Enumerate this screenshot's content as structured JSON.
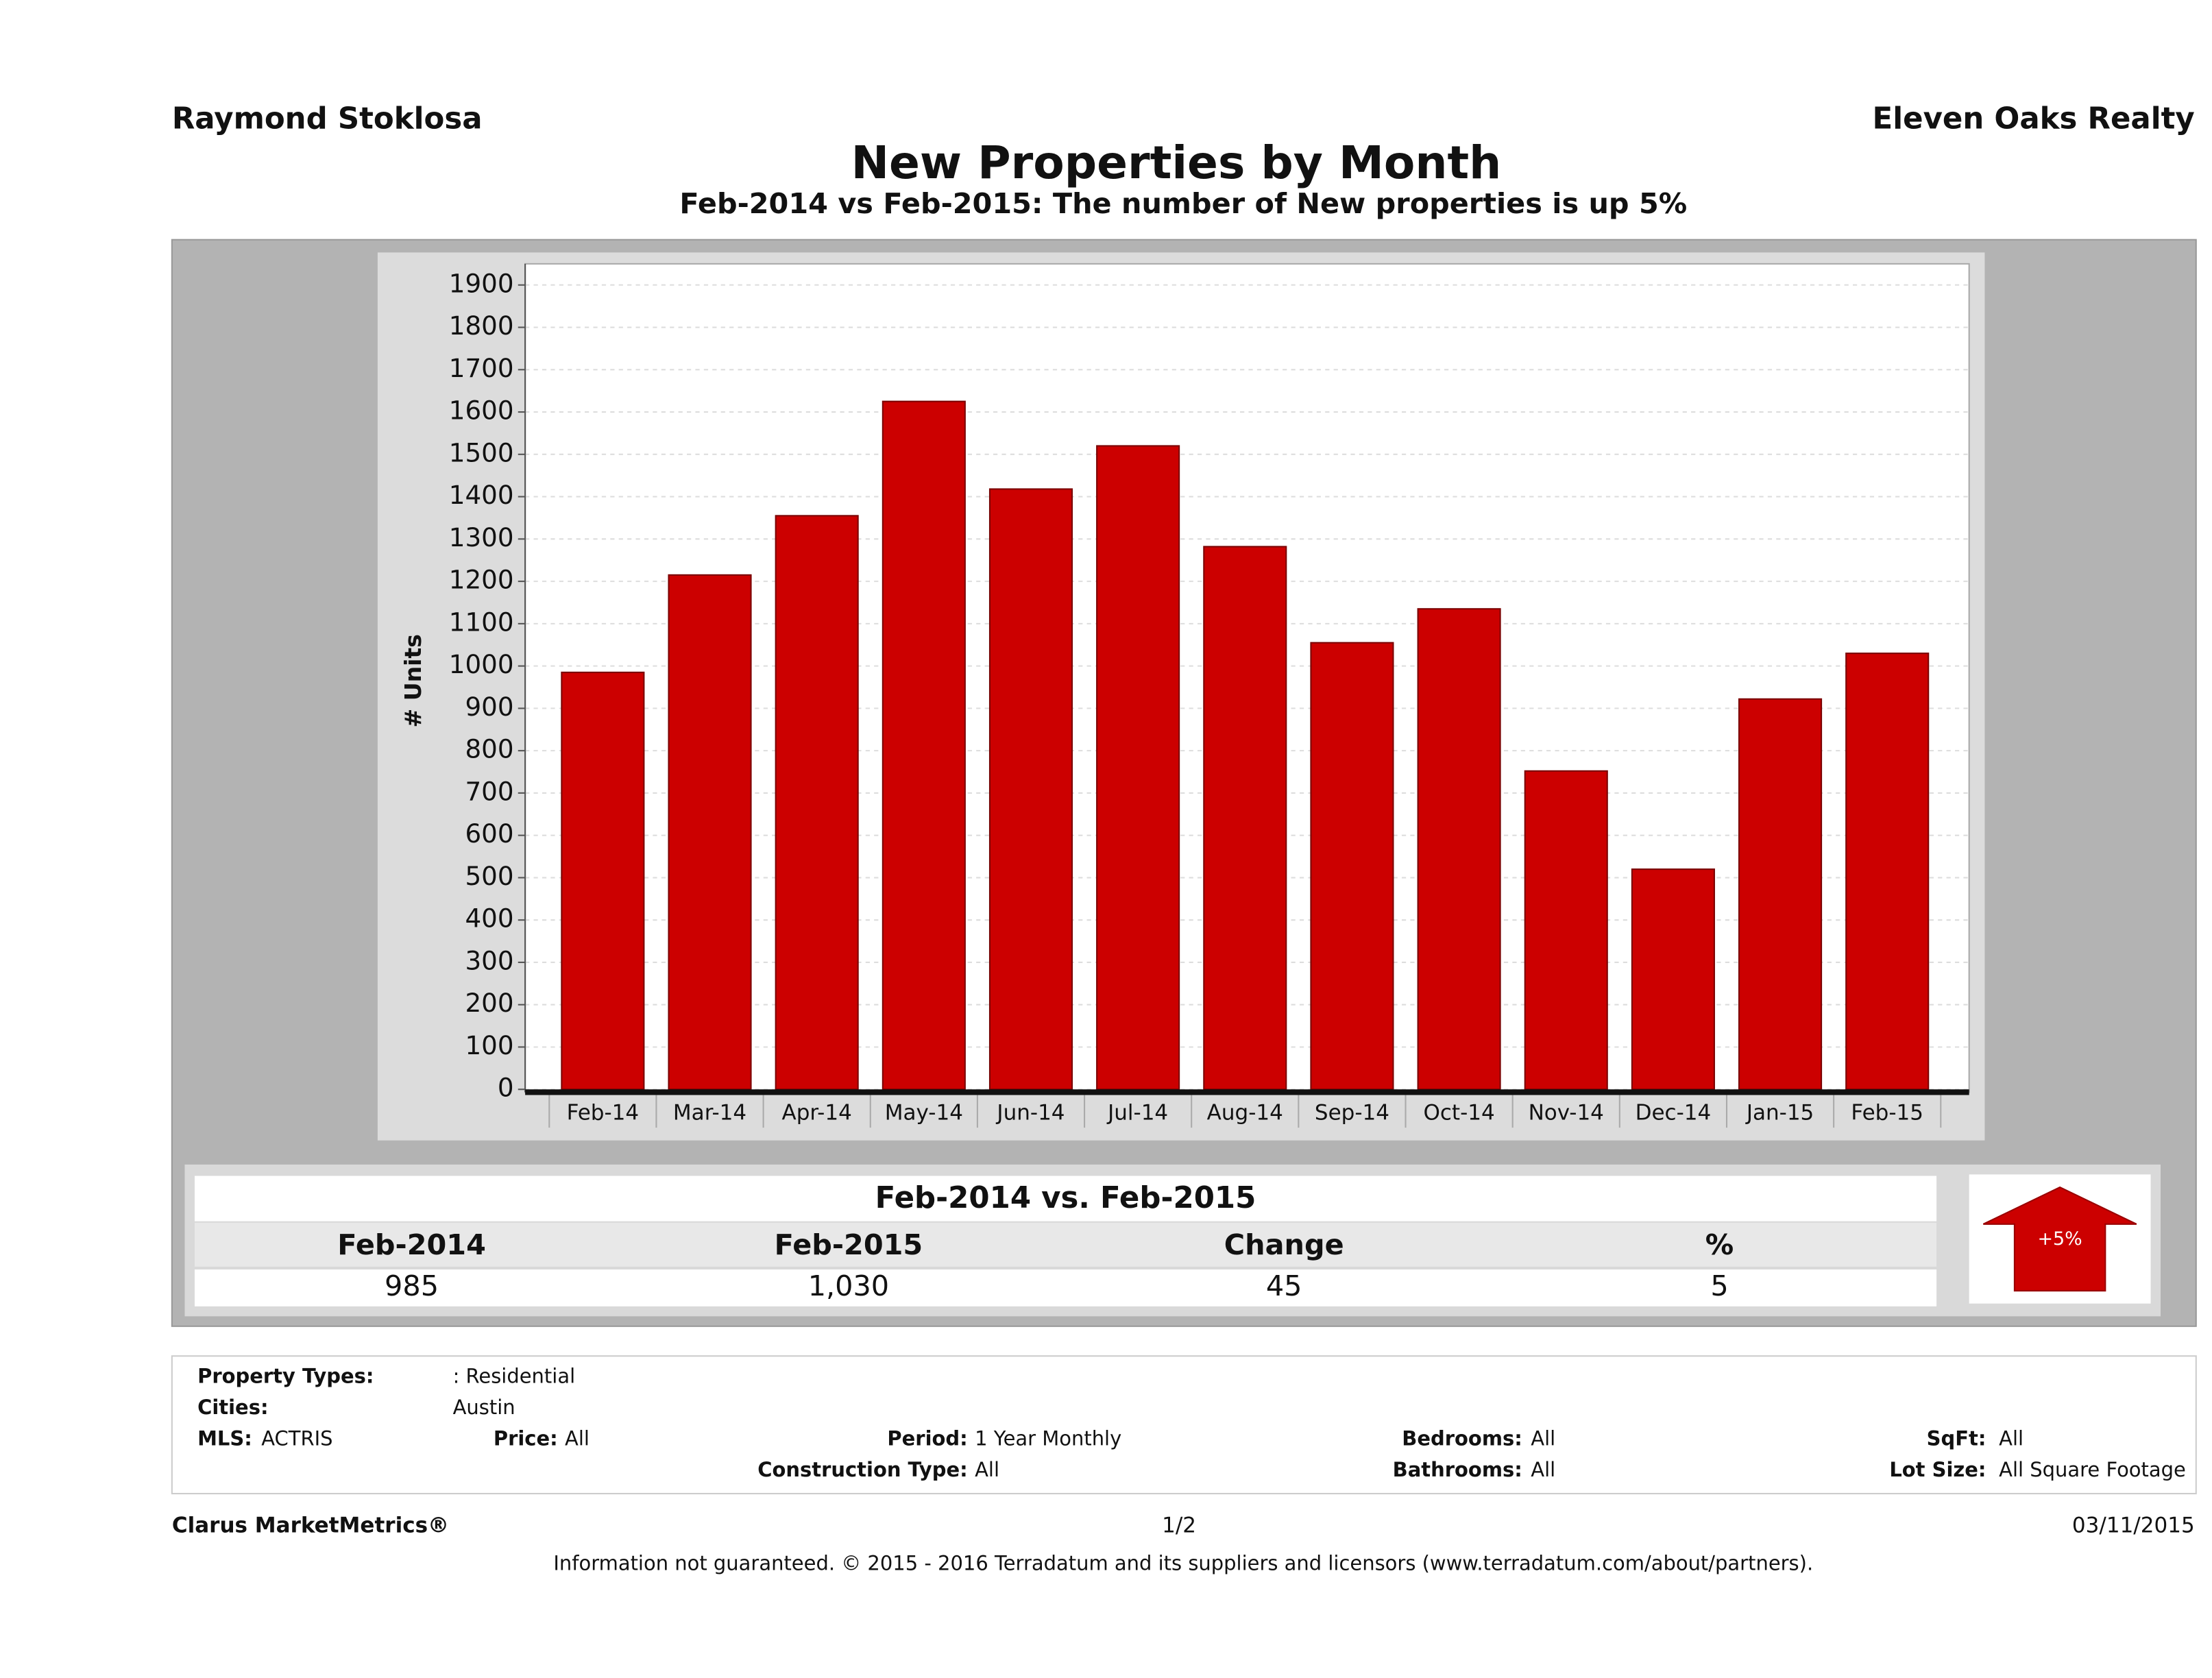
{
  "header": {
    "left": "Raymond Stoklosa",
    "right": "Eleven Oaks Realty"
  },
  "chart_data": {
    "type": "bar",
    "title": "New Properties by Month",
    "subtitle": "Feb-2014 vs Feb-2015: The number of New  properties is up 5%",
    "y_label": "# Units",
    "categories": [
      "Feb-14",
      "Mar-14",
      "Apr-14",
      "May-14",
      "Jun-14",
      "Jul-14",
      "Aug-14",
      "Sep-14",
      "Oct-14",
      "Nov-14",
      "Dec-14",
      "Jan-15",
      "Feb-15"
    ],
    "values": [
      985,
      1215,
      1355,
      1625,
      1418,
      1520,
      1282,
      1055,
      1135,
      752,
      520,
      922,
      1030
    ],
    "color": "#cc0000",
    "ylim": [
      0,
      1950
    ],
    "yticks": [
      0,
      100,
      200,
      300,
      400,
      500,
      600,
      700,
      800,
      900,
      1000,
      1100,
      1200,
      1300,
      1400,
      1500,
      1600,
      1700,
      1800,
      1900
    ],
    "grid": true
  },
  "summary": {
    "title": "Feb-2014 vs. Feb-2015",
    "headers": [
      "Feb-2014",
      "Feb-2015",
      "Change",
      "%"
    ],
    "values": [
      "985",
      "1,030",
      "45",
      "5"
    ],
    "badge": "+5%"
  },
  "criteria": [
    {
      "label": "Property Types:",
      "value": ": Residential"
    },
    {
      "label": "Cities:",
      "value": "Austin"
    },
    {
      "label": "MLS:",
      "value": "ACTRIS"
    },
    {
      "label": "Price:",
      "value": "All"
    },
    {
      "label": "Period:",
      "value": "1 Year Monthly"
    },
    {
      "label": "Bedrooms:",
      "value": "All"
    },
    {
      "label": "SqFt:",
      "value": "All"
    },
    {
      "label": "Construction Type:",
      "value": "All"
    },
    {
      "label": "Bathrooms:",
      "value": "All"
    },
    {
      "label": "Lot Size:",
      "value": "All Square Footage"
    }
  ],
  "footer": {
    "brand": "Clarus MarketMetrics®",
    "page": "1/2",
    "date": "03/11/2015",
    "disclaimer": "Information not guaranteed. © 2015 - 2016 Terradatum and its suppliers and licensors (www.terradatum.com/about/partners)."
  }
}
